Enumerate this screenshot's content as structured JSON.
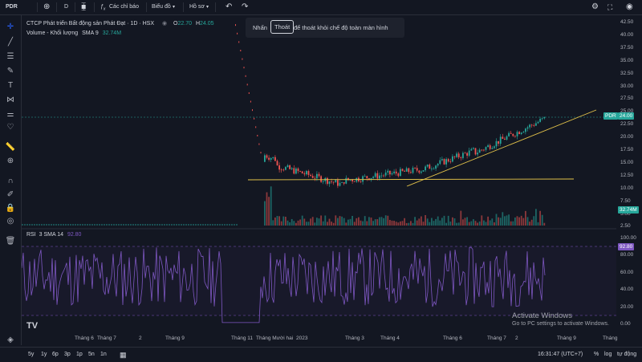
{
  "toolbar": {
    "symbol": "PDR",
    "interval": "D",
    "indicators_label": "Các chỉ báo",
    "chart_label": "Biểu đồ",
    "profile_label": "Hồ sơ"
  },
  "legend": {
    "title": "CTCP Phát triển Bất động sản Phát Đạt · 1D · HSX",
    "o_label": "O",
    "o_value": "22.70",
    "h_label": "H",
    "h_value": "24.05",
    "volume_label": "Volume - Khối lượng",
    "volume_ma": "SMA 9",
    "volume_value": "32.74M",
    "rsi_label": "RSI",
    "rsi_params": "3 SMA 14",
    "rsi_value": "92.80"
  },
  "toast": {
    "press": "Nhấn",
    "key": "Thoát",
    "message": "để thoát khỏi chế độ toàn màn hình"
  },
  "price_axis": [
    "42.50",
    "40.00",
    "37.50",
    "35.00",
    "32.50",
    "30.00",
    "27.50",
    "25.00",
    "22.50",
    "20.00",
    "17.50",
    "15.00",
    "12.50",
    "10.00",
    "7.50",
    "5.00",
    "2.50"
  ],
  "rsi_axis": [
    "100.00",
    "80.00",
    "60.00",
    "40.00",
    "20.00",
    "0.00"
  ],
  "time_axis": [
    "Tháng 6",
    "Tháng 7",
    "2",
    "Tháng 9",
    "Tháng 11",
    "Tháng Mười hai",
    "2023",
    "Tháng 3",
    "Tháng 4",
    "Tháng 6",
    "Tháng 7",
    "2",
    "Tháng 9",
    "Tháng"
  ],
  "price_badge": {
    "symbol": "PDR",
    "value": "24.00"
  },
  "volume_badge": "32.74M",
  "rsi_badge": "92.80",
  "activate": {
    "title": "Activate Windows",
    "sub": "Go to PC settings to activate Windows."
  },
  "bottom": {
    "ranges": [
      "5y",
      "1y",
      "6p",
      "3p",
      "1p",
      "5n",
      "1n"
    ],
    "time": "16:31:47 (UTC+7)",
    "pct": "%",
    "log": "log",
    "auto": "tự động"
  },
  "colors": {
    "up": "#26a69a",
    "down": "#ef5350",
    "rsi": "#7e57c2",
    "trend": "#e5c44a",
    "bg": "#131722"
  }
}
